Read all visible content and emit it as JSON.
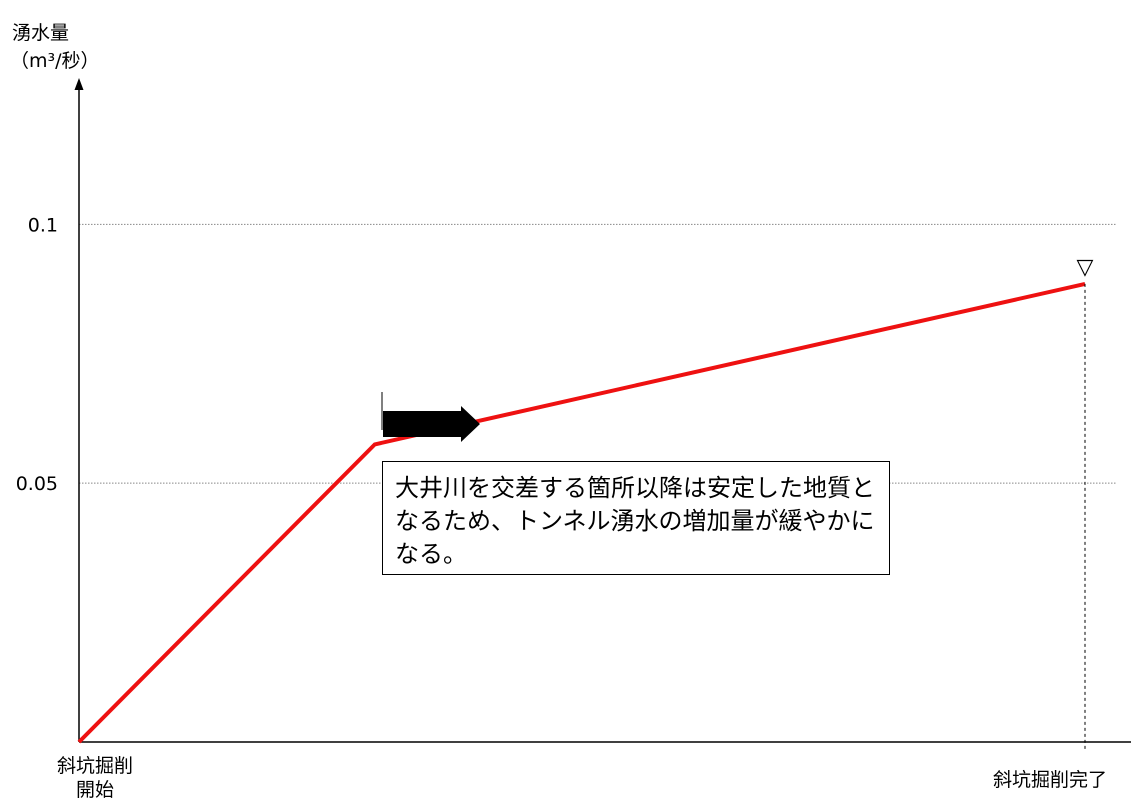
{
  "chart_data": {
    "type": "line",
    "title": "",
    "ylabel_lines": [
      "湧水量",
      "（m³/秒）"
    ],
    "xlabel": "",
    "categories": [
      "斜坑掘削開始",
      "斜坑掘削完了"
    ],
    "x_category_labels": {
      "start": [
        "斜坑掘削",
        "開始"
      ],
      "end": "斜坑掘削完了"
    },
    "x": [
      0,
      0.294,
      1.0
    ],
    "series": [
      {
        "color": "#ee1111",
        "points": [
          {
            "x": 0,
            "y": 0
          },
          {
            "x": 0.294,
            "y": 0.0575
          },
          {
            "x": 1.0,
            "y": 0.0885
          }
        ]
      }
    ],
    "ylim": [
      0,
      0.1275
    ],
    "yticks": [
      {
        "value": 0.05,
        "label": "0.05"
      },
      {
        "value": 0.1,
        "label": "0.1"
      }
    ],
    "xlim": [
      0,
      1.0
    ],
    "grid": "horizontal-dotted",
    "legend": "none",
    "annotation_text": "大井川を交差する箇所以降は安定した地質となるため、トンネル湧水の増加量が緩やかになる。",
    "end_marker": "▽",
    "colors": {
      "line": "#ee1111",
      "axis": "#000000",
      "grid": "#888888",
      "arrow": "#000000"
    }
  }
}
